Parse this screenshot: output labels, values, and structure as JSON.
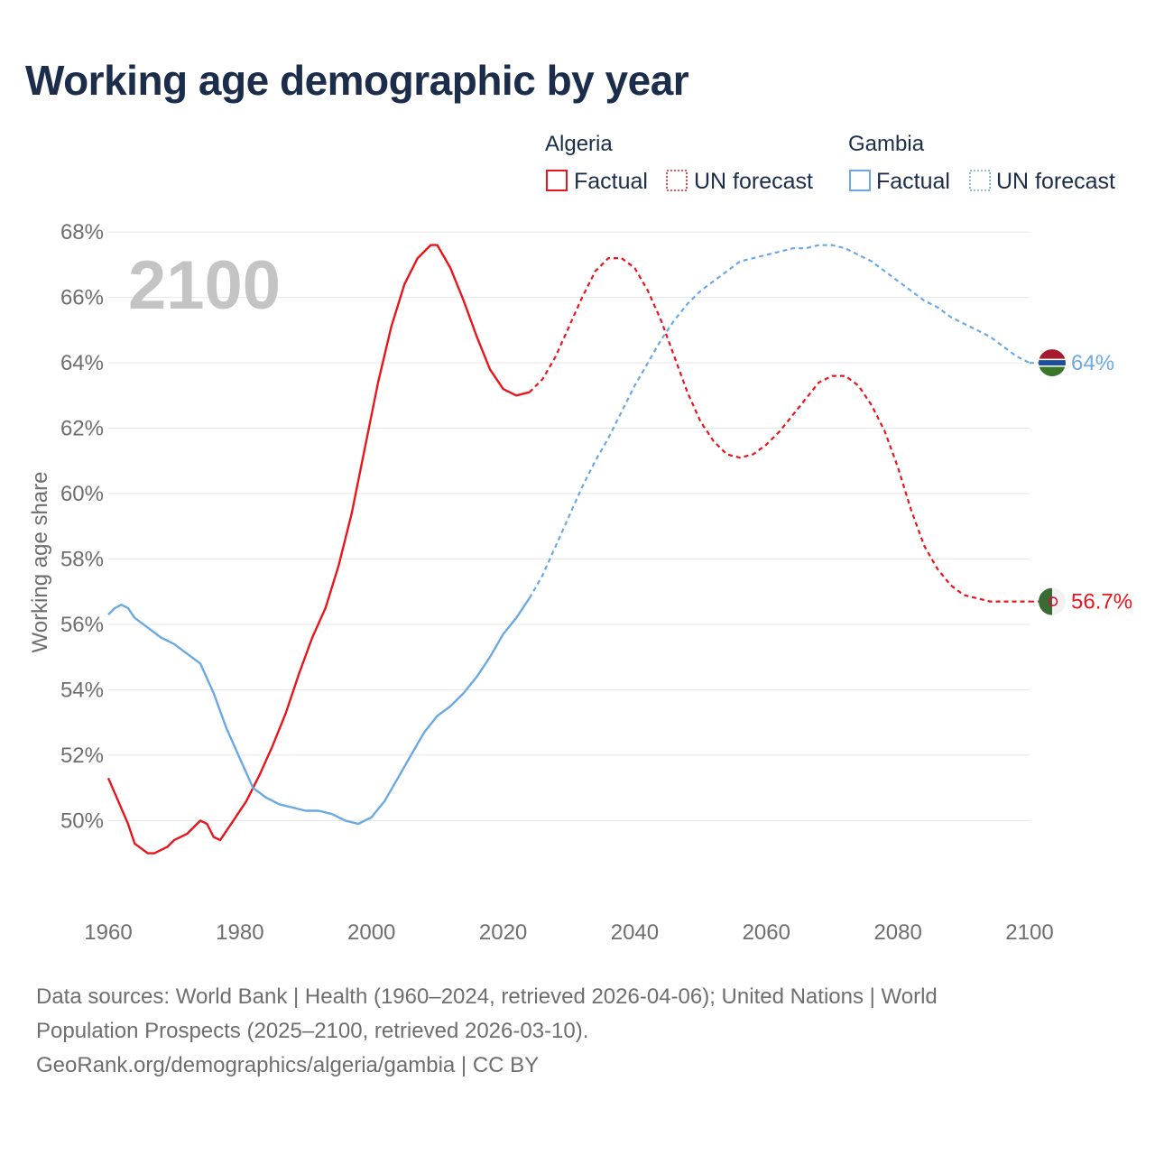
{
  "title": "Working age demographic by year",
  "year_watermark": "2100",
  "legend": {
    "groups": [
      {
        "name": "Algeria",
        "factual_label": "Factual",
        "forecast_label": "UN forecast",
        "color": "#e8161c"
      },
      {
        "name": "Gambia",
        "factual_label": "Factual",
        "forecast_label": "UN forecast",
        "color": "#6aa9e6"
      }
    ]
  },
  "footer": {
    "sources_line1": "Data sources: World Bank | Health (1960–2024, retrieved 2026-04-06); United Nations | World",
    "sources_line2": "Population Prospects (2025–2100, retrieved 2026-03-10).",
    "credit": "GeoRank.org/demographics/algeria/gambia | CC BY"
  },
  "chart_data": {
    "type": "line",
    "ylabel": "Working age share",
    "xlabel": "",
    "xlim": [
      1960,
      2100
    ],
    "ylim": [
      47.5,
      68.5
    ],
    "x_ticks": [
      1960,
      1980,
      2000,
      2020,
      2040,
      2060,
      2080,
      2100
    ],
    "y_ticks": [
      50,
      52,
      54,
      56,
      58,
      60,
      62,
      64,
      66,
      68
    ],
    "y_tick_labels": [
      "50%",
      "52%",
      "54%",
      "56%",
      "58%",
      "60%",
      "62%",
      "64%",
      "66%",
      "68%"
    ],
    "grid": true,
    "factual_end_year": 2024,
    "series": [
      {
        "name": "Algeria",
        "color": "#e8161c",
        "end_label": "56.7%",
        "x": [
          1960,
          1963,
          1964,
          1966,
          1967,
          1969,
          1970,
          1972,
          1974,
          1975,
          1976,
          1977,
          1979,
          1981,
          1983,
          1985,
          1987,
          1989,
          1991,
          1993,
          1995,
          1997,
          1999,
          2001,
          2003,
          2005,
          2007,
          2009,
          2010,
          2012,
          2014,
          2016,
          2018,
          2020,
          2022,
          2024,
          2026,
          2028,
          2030,
          2032,
          2034,
          2036,
          2038,
          2040,
          2042,
          2044,
          2046,
          2048,
          2050,
          2052,
          2054,
          2056,
          2058,
          2060,
          2062,
          2064,
          2066,
          2068,
          2070,
          2072,
          2074,
          2076,
          2078,
          2080,
          2082,
          2084,
          2086,
          2088,
          2090,
          2092,
          2094,
          2096,
          2098,
          2100
        ],
        "values": [
          51.3,
          49.9,
          49.3,
          49.0,
          49.0,
          49.2,
          49.4,
          49.6,
          50.0,
          49.9,
          49.5,
          49.4,
          50.0,
          50.6,
          51.4,
          52.3,
          53.3,
          54.5,
          55.6,
          56.5,
          57.8,
          59.4,
          61.4,
          63.4,
          65.1,
          66.4,
          67.2,
          67.6,
          67.6,
          66.9,
          65.9,
          64.8,
          63.8,
          63.2,
          63.0,
          63.1,
          63.5,
          64.2,
          65.1,
          66.0,
          66.8,
          67.2,
          67.2,
          66.9,
          66.2,
          65.3,
          64.2,
          63.1,
          62.2,
          61.6,
          61.2,
          61.1,
          61.2,
          61.5,
          61.9,
          62.4,
          62.9,
          63.4,
          63.6,
          63.6,
          63.3,
          62.7,
          61.9,
          60.8,
          59.5,
          58.4,
          57.7,
          57.2,
          56.9,
          56.8,
          56.7,
          56.7,
          56.7,
          56.7
        ]
      },
      {
        "name": "Gambia",
        "color": "#6aa9e6",
        "end_label": "64%",
        "x": [
          1960,
          1961,
          1962,
          1963,
          1964,
          1966,
          1968,
          1970,
          1972,
          1974,
          1976,
          1978,
          1980,
          1982,
          1984,
          1986,
          1988,
          1990,
          1992,
          1994,
          1996,
          1998,
          2000,
          2002,
          2004,
          2006,
          2008,
          2010,
          2012,
          2014,
          2016,
          2018,
          2020,
          2022,
          2024,
          2026,
          2028,
          2030,
          2032,
          2034,
          2036,
          2038,
          2040,
          2042,
          2044,
          2046,
          2048,
          2050,
          2052,
          2054,
          2056,
          2058,
          2060,
          2062,
          2064,
          2066,
          2068,
          2070,
          2072,
          2074,
          2076,
          2078,
          2080,
          2082,
          2084,
          2086,
          2088,
          2090,
          2092,
          2094,
          2096,
          2098,
          2100
        ],
        "values": [
          56.3,
          56.5,
          56.6,
          56.5,
          56.2,
          55.9,
          55.6,
          55.4,
          55.1,
          54.8,
          53.9,
          52.8,
          51.9,
          51.0,
          50.7,
          50.5,
          50.4,
          50.3,
          50.3,
          50.2,
          50.0,
          49.9,
          50.1,
          50.6,
          51.3,
          52.0,
          52.7,
          53.2,
          53.5,
          53.9,
          54.4,
          55.0,
          55.7,
          56.2,
          56.8,
          57.5,
          58.4,
          59.3,
          60.2,
          61.0,
          61.7,
          62.5,
          63.3,
          64.0,
          64.7,
          65.3,
          65.8,
          66.2,
          66.5,
          66.8,
          67.1,
          67.2,
          67.3,
          67.4,
          67.5,
          67.5,
          67.6,
          67.6,
          67.5,
          67.3,
          67.1,
          66.8,
          66.5,
          66.2,
          65.9,
          65.7,
          65.4,
          65.2,
          65.0,
          64.8,
          64.5,
          64.2,
          64.0
        ]
      }
    ]
  }
}
